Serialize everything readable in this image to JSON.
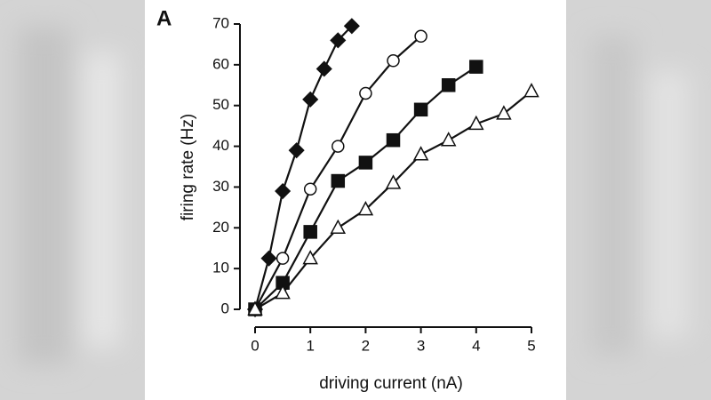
{
  "chart_data": {
    "type": "line",
    "panel_label": "A",
    "xlabel": "driving current (nA)",
    "ylabel": "firing rate (Hz)",
    "xlim": [
      0,
      5
    ],
    "xticks": [
      0,
      1,
      2,
      3,
      4,
      5
    ],
    "ylim": [
      0,
      70
    ],
    "yticks": [
      0,
      10,
      20,
      30,
      40,
      50,
      60,
      70
    ],
    "grid": false,
    "series": [
      {
        "marker": "diamond",
        "filled": true,
        "color": "#111111",
        "x": [
          0,
          0.25,
          0.5,
          0.75,
          1,
          1.25,
          1.5,
          1.75
        ],
        "values": [
          0,
          12.5,
          29,
          39,
          51.5,
          59,
          66,
          69.5
        ]
      },
      {
        "marker": "circle",
        "filled": false,
        "color": "#111111",
        "x": [
          0,
          0.5,
          1,
          1.5,
          2,
          2.5,
          3
        ],
        "values": [
          0,
          12.5,
          29.5,
          40,
          53,
          61,
          67
        ]
      },
      {
        "marker": "square",
        "filled": true,
        "color": "#111111",
        "x": [
          0,
          0.5,
          1,
          1.5,
          2,
          2.5,
          3,
          3.5,
          4
        ],
        "values": [
          0,
          6.5,
          19,
          31.5,
          36,
          41.5,
          49,
          55,
          59.5
        ]
      },
      {
        "marker": "triangle",
        "filled": false,
        "color": "#111111",
        "x": [
          0,
          0.5,
          1,
          1.5,
          2,
          2.5,
          3,
          3.5,
          4,
          4.5,
          5
        ],
        "values": [
          0,
          4,
          12.5,
          20,
          24.5,
          31,
          38,
          41.5,
          45.5,
          48,
          53.5
        ]
      }
    ]
  }
}
